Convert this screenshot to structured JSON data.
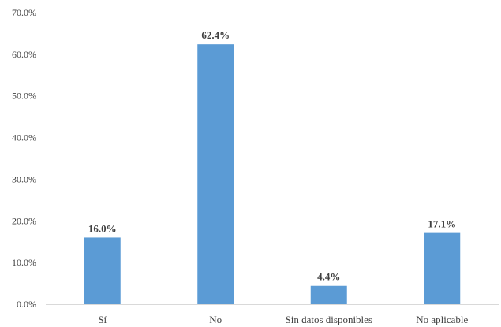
{
  "chart_data": {
    "type": "bar",
    "title": "",
    "xlabel": "",
    "ylabel": "",
    "categories": [
      "Sí",
      "No",
      "Sin datos disponibles",
      "No aplicable"
    ],
    "values": [
      16.0,
      62.4,
      4.4,
      17.1
    ],
    "data_labels": [
      "16.0%",
      "62.4%",
      "4.4%",
      "17.1%"
    ],
    "ylim": [
      0,
      70
    ],
    "yticks": [
      0,
      10,
      20,
      30,
      40,
      50,
      60,
      70
    ],
    "ytick_labels": [
      "0.0%",
      "10.0%",
      "20.0%",
      "30.0%",
      "40.0%",
      "50.0%",
      "60.0%",
      "70.0%"
    ],
    "grid": false,
    "legend": "none",
    "bar_color": "#5B9BD5",
    "axis_color": "#D9D9D9",
    "text_color": "#404040"
  }
}
